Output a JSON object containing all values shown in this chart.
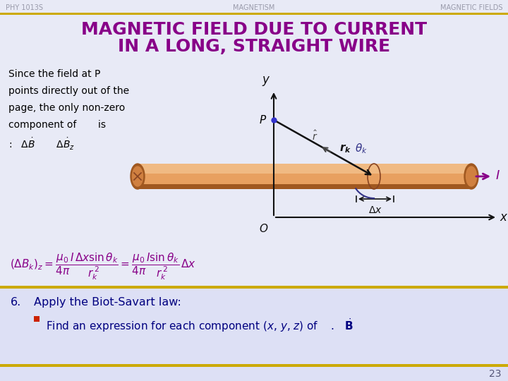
{
  "bg_color": "#e8eaf6",
  "header_left": "PHY 1013S",
  "header_center": "MAGNETISM",
  "header_right": "MAGNETIC FIELDS",
  "header_text_color": "#999aaa",
  "title_line1": "MAGNETIC FIELD DUE TO CURRENT",
  "title_line2": "IN A LONG, STRAIGHT WIRE",
  "title_color": "#880088",
  "bar_color": "#ccaa00",
  "footer_number": "23",
  "bottom_section_bg": "#dde0f5",
  "wire_color": "#e8a060",
  "wire_highlight": "#f8d0a0",
  "wire_shadow": "#a05820",
  "wire_mid": "#d08040",
  "axis_color": "#111111",
  "point_color": "#3333cc",
  "rk_color": "#111111",
  "rhat_color": "#444444",
  "theta_color": "#333388",
  "I_color": "#880088",
  "step_color": "#000080",
  "formula_color": "#880088",
  "bullet_color": "#cc2200",
  "text_color": "#000000"
}
